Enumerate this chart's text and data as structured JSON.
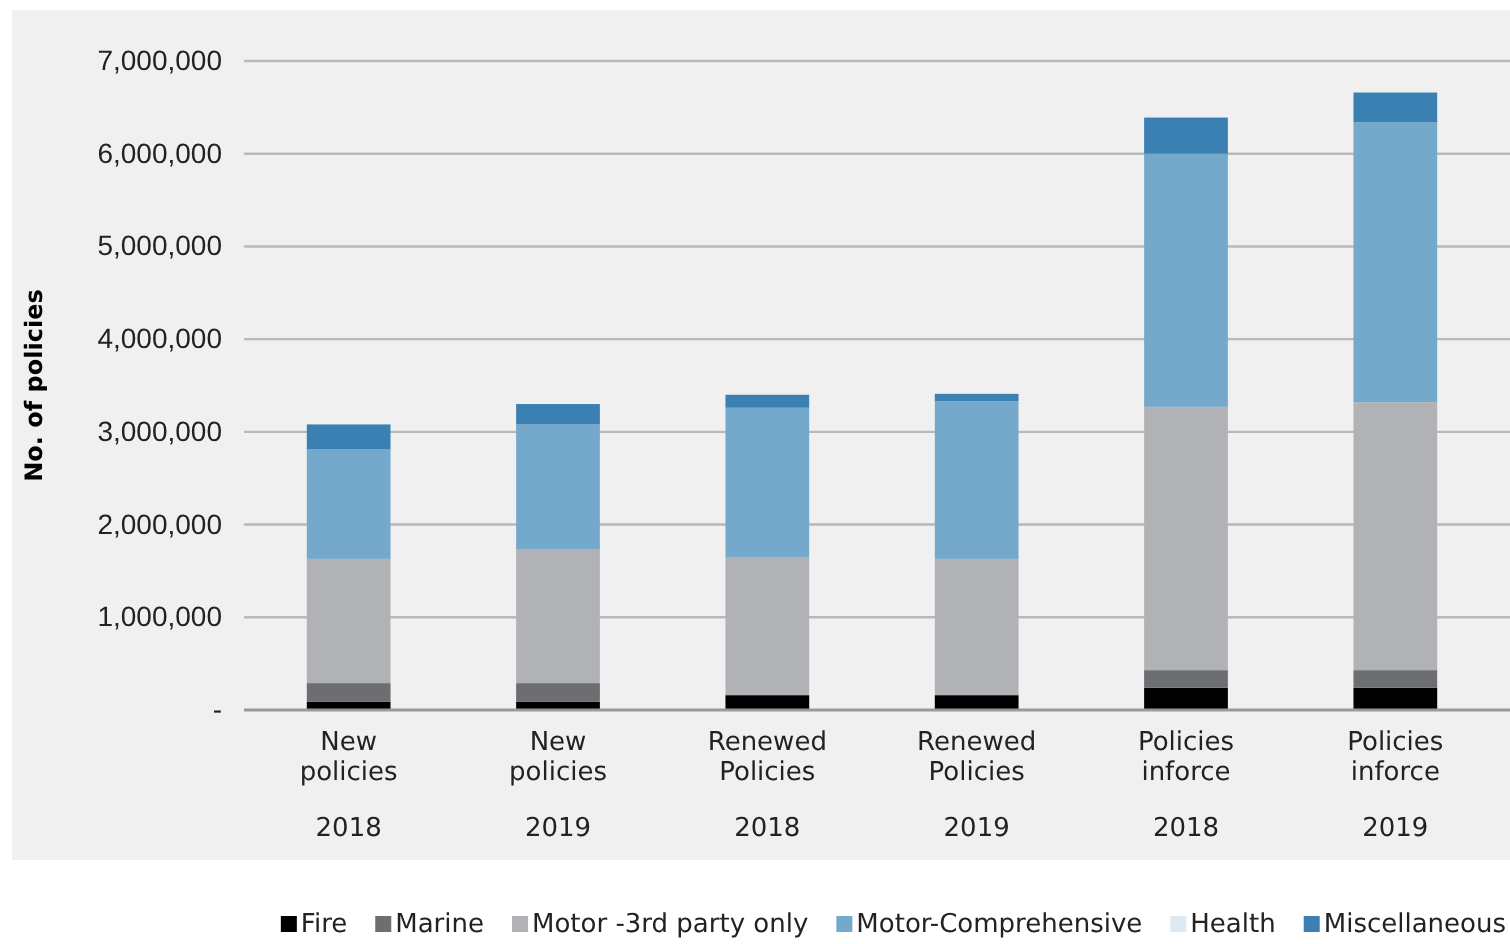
{
  "chart_data": {
    "type": "bar",
    "stacked": true,
    "ylabel": "No. of policies",
    "categories": [
      "New\npolicies\n2018",
      "New\npolicies\n2019",
      "Renewed\nPolicies\n2018",
      "Renewed\nPolicies\n2019",
      "Policies\ninforce\n2018",
      "Policies\ninforce\n2019"
    ],
    "series": [
      {
        "name": "Fire",
        "color": "#000000",
        "values": [
          90000,
          90000,
          160000,
          160000,
          240000,
          240000
        ]
      },
      {
        "name": "Marine",
        "color": "#6d6e71",
        "values": [
          200000,
          200000,
          0,
          0,
          190000,
          190000
        ]
      },
      {
        "name": "Motor -3rd party only",
        "color": "#b1b2b5",
        "values": [
          1340000,
          1440000,
          1490000,
          1470000,
          2840000,
          2890000
        ]
      },
      {
        "name": "Motor-Comprehensive",
        "color": "#74a9cb",
        "values": [
          1180000,
          1350000,
          1610000,
          1700000,
          2730000,
          3020000
        ]
      },
      {
        "name": "Health",
        "color": "#dde9f3",
        "values": [
          0,
          0,
          0,
          0,
          0,
          0
        ]
      },
      {
        "name": "Miscellaneous",
        "color": "#3a80b3",
        "values": [
          270000,
          220000,
          140000,
          80000,
          390000,
          320000
        ]
      }
    ],
    "ylim": [
      0,
      7000000
    ],
    "yticks": [
      {
        "value": 0,
        "label": "-"
      },
      {
        "value": 1000000,
        "label": "1,000,000"
      },
      {
        "value": 2000000,
        "label": "2,000,000"
      },
      {
        "value": 3000000,
        "label": "3,000,000"
      },
      {
        "value": 4000000,
        "label": "4,000,000"
      },
      {
        "value": 5000000,
        "label": "5,000,000"
      },
      {
        "value": 6000000,
        "label": "6,000,000"
      },
      {
        "value": 7000000,
        "label": "7,000,000"
      }
    ],
    "grid": "y",
    "legend": "bottom"
  }
}
